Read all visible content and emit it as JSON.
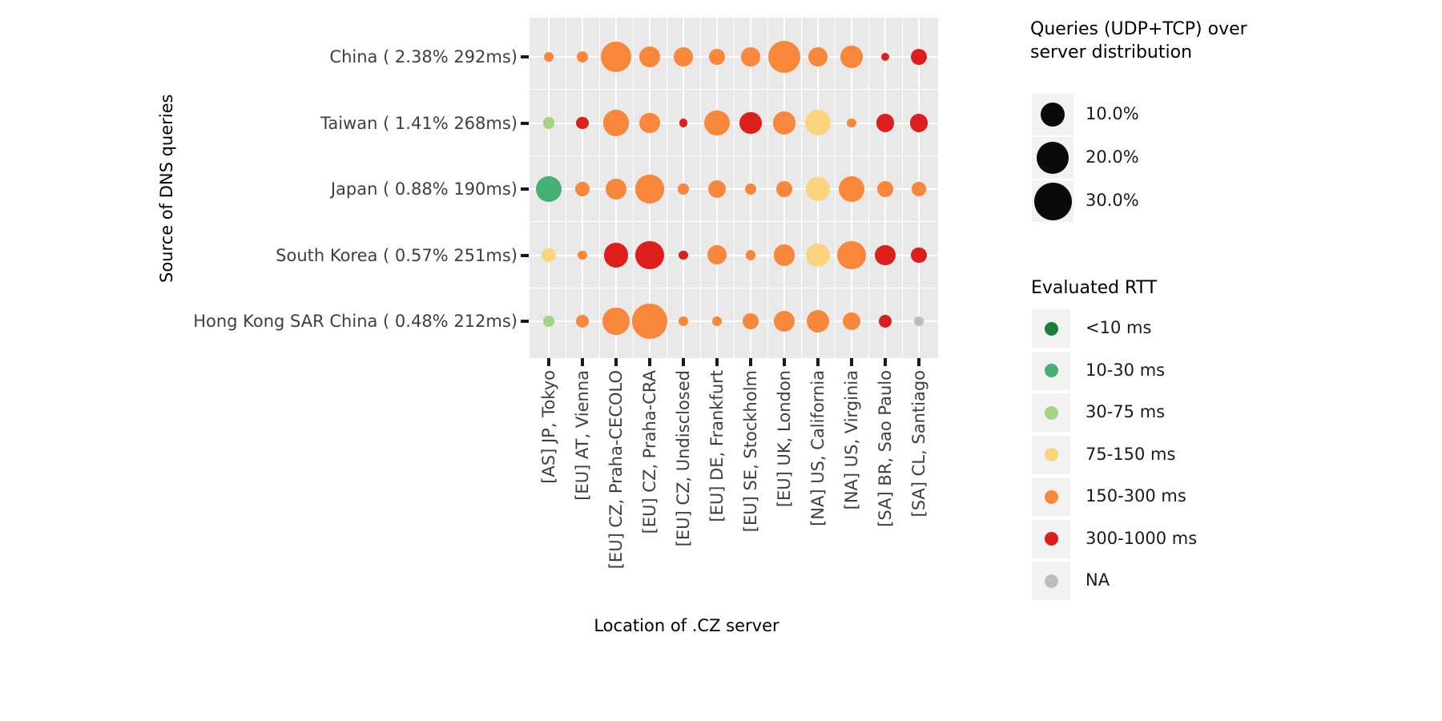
{
  "figure": {
    "y_axis_title": "Source of DNS queries",
    "x_axis_title": "Location of .CZ server"
  },
  "legend_size": {
    "title": "Queries (UDP+TCP) over\nserver distribution",
    "entries": [
      {
        "label": "10.0%",
        "pct": 10
      },
      {
        "label": "20.0%",
        "pct": 20
      },
      {
        "label": "30.0%",
        "pct": 30
      }
    ],
    "dot_color": "#0a0a0a"
  },
  "legend_rtt": {
    "title": "Evaluated RTT",
    "entries": [
      {
        "key": "<10",
        "label": "<10 ms",
        "color": "#1b7d38"
      },
      {
        "key": "10-30",
        "label": "10-30 ms",
        "color": "#45b072"
      },
      {
        "key": "30-75",
        "label": "30-75 ms",
        "color": "#a6d487"
      },
      {
        "key": "75-150",
        "label": "75-150 ms",
        "color": "#fbd47e"
      },
      {
        "key": "150-300",
        "label": "150-300 ms",
        "color": "#f8873b"
      },
      {
        "key": "300-1000",
        "label": "300-1000 ms",
        "color": "#dc1f1c"
      },
      {
        "key": "NA",
        "label": "NA",
        "color": "#bdbdbd"
      }
    ]
  },
  "chart_data": {
    "type": "scatter",
    "subtype": "balloon-bubble",
    "xlabel": "Location of .CZ server",
    "ylabel": "Source of DNS queries",
    "grid": "on",
    "panel_color": "#e9e9e9",
    "x_categories": [
      "[AS] JP, Tokyo",
      "[EU] AT, Vienna",
      "[EU] CZ, Praha-CECOLO",
      "[EU] CZ, Praha-CRA",
      "[EU] CZ, Undisclosed",
      "[EU] DE, Frankfurt",
      "[EU] SE, Stockholm",
      "[EU] UK, London",
      "[NA] US, California",
      "[NA] US, Virginia",
      "[SA] BR, Sao Paulo",
      "[SA] CL, Santiago"
    ],
    "y_categories": [
      "China ( 2.38% 292ms)",
      "Taiwan ( 1.41% 268ms)",
      "Japan ( 0.88% 190ms)",
      "South Korea ( 0.57% 251ms)",
      "Hong Kong SAR China ( 0.48% 212ms)"
    ],
    "size_legend_values_pct": [
      10,
      20,
      30
    ],
    "series": [
      {
        "name": "China ( 2.38% 292ms)",
        "sizes_pct": [
          0.5,
          1.0,
          18.0,
          7.0,
          5.5,
          3.5,
          5.0,
          21.0,
          5.5,
          8.0,
          0.3,
          3.5
        ],
        "rtt": [
          "150-300",
          "150-300",
          "150-300",
          "150-300",
          "150-300",
          "150-300",
          "150-300",
          "150-300",
          "150-300",
          "150-300",
          "300-1000",
          "300-1000"
        ]
      },
      {
        "name": "Taiwan ( 1.41% 268ms)",
        "sizes_pct": [
          1.0,
          1.3,
          12.7,
          6.8,
          0.3,
          11.0,
          7.6,
          9.1,
          11.8,
          0.5,
          4.3,
          4.3
        ],
        "rtt": [
          "30-75",
          "300-1000",
          "150-300",
          "150-300",
          "300-1000",
          "150-300",
          "300-1000",
          "150-300",
          "75-150",
          "150-300",
          "300-1000",
          "300-1000"
        ]
      },
      {
        "name": "Japan ( 0.88% 190ms)",
        "sizes_pct": [
          11.8,
          2.3,
          6.8,
          14.8,
          1.0,
          4.6,
          1.0,
          3.5,
          10.0,
          11.8,
          3.2,
          2.1
        ],
        "rtt": [
          "10-30",
          "150-300",
          "150-300",
          "150-300",
          "150-300",
          "150-300",
          "150-300",
          "150-300",
          "75-150",
          "150-300",
          "150-300",
          "150-300"
        ]
      },
      {
        "name": "South Korea ( 0.57% 251ms)",
        "sizes_pct": [
          2.1,
          0.5,
          10.5,
          14.8,
          0.5,
          5.5,
          0.6,
          7.3,
          9.5,
          15.8,
          6.2,
          2.9
        ],
        "rtt": [
          "75-150",
          "150-300",
          "300-1000",
          "300-1000",
          "300-1000",
          "150-300",
          "150-300",
          "150-300",
          "75-150",
          "150-300",
          "300-1000",
          "300-1000"
        ]
      },
      {
        "name": "Hong Kong SAR China ( 0.48% 212ms)",
        "sizes_pct": [
          0.8,
          1.8,
          13.1,
          24.9,
          0.6,
          0.5,
          3.5,
          7.3,
          8.7,
          4.6,
          1.6,
          0.5
        ],
        "rtt": [
          "30-75",
          "150-300",
          "150-300",
          "150-300",
          "150-300",
          "150-300",
          "150-300",
          "150-300",
          "150-300",
          "150-300",
          "300-1000",
          "NA"
        ]
      }
    ]
  }
}
